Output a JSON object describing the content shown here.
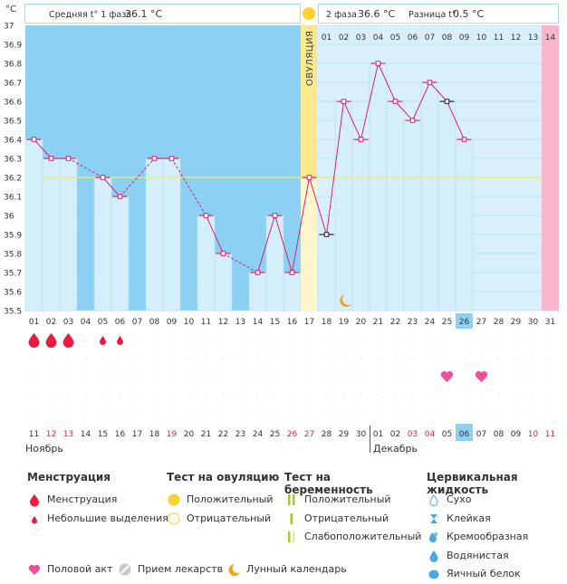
{
  "header": {
    "unit": "°C",
    "phase1_label": "Средняя t° 1 фаза",
    "phase1_value": "36.1 °C",
    "phase2_label": "2 фаза",
    "phase2_value": "36.6 °C",
    "diff_label": "Разница t°",
    "diff_value": "0.5 °C",
    "ovulation_label": "ОВУЛЯЦИЯ"
  },
  "chart_data": {
    "type": "line",
    "ylim": [
      35.5,
      37.0
    ],
    "yticks": [
      "37",
      "36.9",
      "36.8",
      "36.7",
      "36.6",
      "36.5",
      "36.4",
      "36.3",
      "36.2",
      "36.1",
      "36",
      "35.9",
      "35.8",
      "35.7",
      "35.6",
      "35.5"
    ],
    "cycle_days": [
      "01",
      "02",
      "03",
      "04",
      "05",
      "06",
      "07",
      "08",
      "09",
      "10",
      "11",
      "12",
      "13",
      "14",
      "15",
      "16",
      "17",
      "18",
      "19",
      "20",
      "21",
      "22",
      "23",
      "24",
      "25",
      "26",
      "27",
      "28",
      "29",
      "30",
      "31"
    ],
    "today_day": "26",
    "ovulation_day": "17",
    "phase2_days": [
      "01",
      "02",
      "03",
      "04",
      "05",
      "06",
      "07",
      "08",
      "09",
      "10",
      "11",
      "12",
      "13",
      "14"
    ],
    "series": [
      {
        "values": [
          36.4,
          36.3,
          36.3,
          null,
          36.2,
          36.1,
          null,
          36.3,
          36.3,
          null,
          36.0,
          35.8,
          null,
          35.7,
          36.0,
          35.7,
          36.2,
          35.9,
          36.6,
          36.4,
          36.8,
          36.6,
          36.5,
          36.7,
          36.6,
          36.4,
          null,
          null,
          null,
          null,
          null
        ]
      }
    ],
    "coverline": 36.2,
    "dates": [
      "11",
      "12",
      "13",
      "14",
      "15",
      "16",
      "17",
      "18",
      "19",
      "20",
      "21",
      "22",
      "23",
      "24",
      "25",
      "26",
      "27",
      "28",
      "29",
      "30",
      "01",
      "02",
      "03",
      "04",
      "05",
      "06",
      "07",
      "08",
      "09",
      "10",
      "11"
    ],
    "date_red": [
      false,
      true,
      true,
      false,
      false,
      false,
      false,
      false,
      true,
      false,
      false,
      false,
      false,
      false,
      false,
      true,
      true,
      false,
      false,
      false,
      false,
      false,
      true,
      true,
      false,
      false,
      false,
      false,
      false,
      true,
      true
    ],
    "months": [
      "Ноябрь",
      "Декабрь"
    ],
    "menstruation": [
      "big",
      "big",
      "big",
      null,
      "small",
      "small",
      null,
      null,
      null,
      null,
      null,
      null,
      null,
      null,
      null,
      null,
      null,
      null,
      null,
      null,
      null,
      null,
      null,
      null,
      null,
      null,
      null,
      null,
      null,
      null,
      null
    ],
    "intercourse_days": [
      "25",
      "27"
    ],
    "moon_day": "19"
  },
  "legend": {
    "menstruation": {
      "title": "Менструация",
      "items": [
        "Менструация",
        "Небольшие выделения"
      ]
    },
    "ovulation_test": {
      "title": "Тест на овуляцию",
      "items": [
        "Положительный",
        "Отрицательный"
      ]
    },
    "pregnancy_test": {
      "title": "Тест на беременность",
      "items": [
        "Положительный",
        "Отрицательный",
        "Слабоположительный"
      ]
    },
    "cervical": {
      "title": "Цервикальная жидкость",
      "items": [
        "Сухо",
        "Клейкая",
        "Кремообразная",
        "Водянистая",
        "Яичный белок"
      ]
    },
    "bottom": [
      "Половой акт",
      "Прием лекарств",
      "Лунный календарь"
    ]
  },
  "colors": {
    "plot_bg": "#8cd0f3",
    "bar_fill": "#d4eefb",
    "phase2_bg": "#d9f0fb",
    "ovulation_band": "#fbe78c",
    "day31_band": "#f7b6c9",
    "line": "#d7246f",
    "coverline": "#f0ee5a",
    "today": "#8fd0ef",
    "heart": "#f0509a",
    "drop": "#e81c40",
    "moon": "#f5a01b"
  },
  "icons": {
    "drop": "drop-icon",
    "heart": "heart-icon",
    "moon": "moon-icon",
    "ovulation_sun": "sun-icon"
  }
}
